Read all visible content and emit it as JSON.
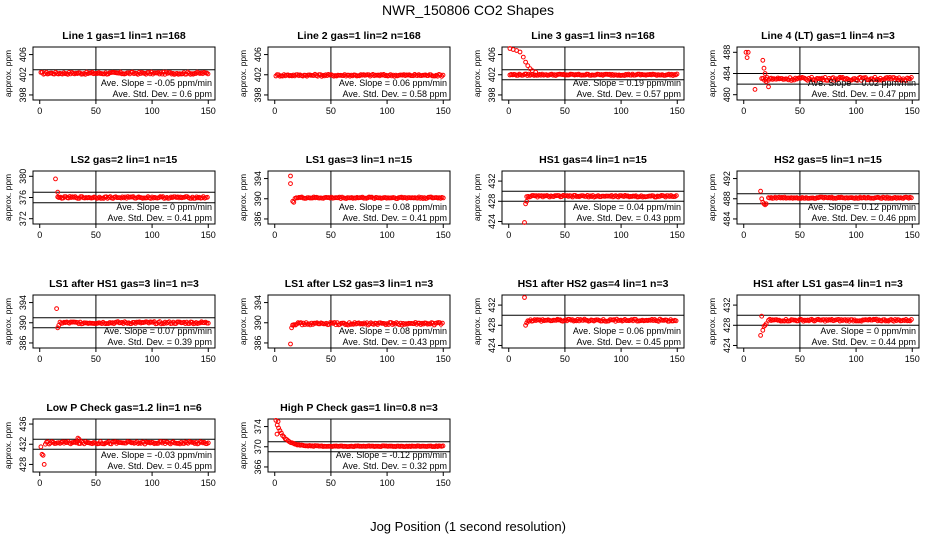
{
  "title": "NWR_150806  CO2 Shapes",
  "xlabel": "Jog Position (1 second resolution)",
  "colors": {
    "points": "#ff0000",
    "axes": "#000000"
  },
  "chart_data": [
    {
      "type": "scatter",
      "title": "Line 1 gas=1 lin=1 n=168",
      "ylabel": "approx. ppm",
      "xticks": [
        0,
        50,
        100,
        150
      ],
      "yticks": [
        398,
        402,
        406
      ],
      "ylim": [
        397,
        407.5
      ],
      "hline_upper": 403,
      "hline_lower": null,
      "slope_text": "Ave. Slope = -0.05 ppm/min",
      "sd_text": "Ave. Std. Dev. = 0.6  ppm",
      "base": 402.3,
      "start_x": 1,
      "spike": [],
      "noise": 0.22
    },
    {
      "type": "scatter",
      "title": "Line 2 gas=1 lin=2 n=168",
      "ylabel": "approx. ppm",
      "xticks": [
        0,
        50,
        100,
        150
      ],
      "yticks": [
        398,
        402,
        406
      ],
      "ylim": [
        397,
        407.5
      ],
      "hline_upper": null,
      "hline_lower": null,
      "slope_text": "Ave. Slope = 0.06 ppm/min",
      "sd_text": "Ave. Std. Dev. = 0.58  ppm",
      "base": 401.9,
      "start_x": 1,
      "spike": [],
      "noise": 0.2
    },
    {
      "type": "scatter",
      "title": "Line 3 gas=1 lin=3 n=168",
      "ylabel": "approx. ppm",
      "xticks": [
        0,
        50,
        100,
        150
      ],
      "yticks": [
        398,
        402,
        406
      ],
      "ylim": [
        397,
        407.5
      ],
      "hline_upper": 403,
      "hline_lower": 401,
      "slope_text": "Ave. Slope = 0.19 ppm/min",
      "sd_text": "Ave. Std. Dev. = 0.57  ppm",
      "base": 402.0,
      "start_x": 1,
      "spike": [
        [
          1,
          407.2
        ],
        [
          4,
          407
        ],
        [
          7,
          406.8
        ],
        [
          10,
          406.5
        ],
        [
          13,
          405.5
        ],
        [
          15,
          404.5
        ],
        [
          17,
          403.8
        ],
        [
          19,
          403.2
        ],
        [
          21,
          402.8
        ],
        [
          24,
          402.5
        ]
      ],
      "noise": 0.15
    },
    {
      "type": "scatter",
      "title": "Line 4 (LT) gas=1 lin=4 n=3",
      "ylabel": "approx. ppm",
      "xticks": [
        0,
        50,
        100,
        150
      ],
      "yticks": [
        480,
        484,
        488
      ],
      "ylim": [
        479,
        489
      ],
      "hline_upper": 484,
      "hline_lower": 482,
      "slope_text": "Ave. Slope = 0.02 ppm/min",
      "sd_text": "Ave. Std. Dev. = 0.47  ppm",
      "base": 483.0,
      "start_x": 16,
      "spike": [
        [
          2,
          488
        ],
        [
          4,
          488
        ],
        [
          3,
          487
        ],
        [
          17,
          486.5
        ],
        [
          18,
          485
        ],
        [
          19,
          484
        ],
        [
          10,
          481
        ],
        [
          20,
          482.5
        ],
        [
          22,
          481.5
        ]
      ],
      "noise": 0.3
    },
    {
      "type": "scatter",
      "title": "LS2 gas=2 lin=1 n=15",
      "ylabel": "approx. ppm",
      "xticks": [
        0,
        50,
        100,
        150
      ],
      "yticks": [
        372,
        376,
        380
      ],
      "ylim": [
        371,
        381
      ],
      "hline_upper": 377,
      "hline_lower": 375,
      "slope_text": "Ave. Slope = 0 ppm/min",
      "sd_text": "Ave. Std. Dev. = 0.41  ppm",
      "base": 376.0,
      "start_x": 16,
      "spike": [
        [
          14,
          379.5
        ],
        [
          16,
          377
        ],
        [
          17,
          376
        ]
      ],
      "noise": 0.18
    },
    {
      "type": "scatter",
      "title": "LS1 gas=3 lin=1 n=15",
      "ylabel": "approx. ppm",
      "xticks": [
        0,
        50,
        100,
        150
      ],
      "yticks": [
        386,
        390,
        394
      ],
      "ylim": [
        385,
        395.5
      ],
      "hline_upper": null,
      "hline_lower": null,
      "slope_text": "Ave. Slope = 0.08 ppm/min",
      "sd_text": "Ave. Std. Dev. = 0.41  ppm",
      "base": 390.2,
      "start_x": 18,
      "spike": [
        [
          14,
          394.5
        ],
        [
          14,
          393
        ],
        [
          16,
          389.5
        ],
        [
          17,
          389.3
        ]
      ],
      "noise": 0.16
    },
    {
      "type": "scatter",
      "title": "HS1 gas=4 lin=1 n=15",
      "ylabel": "approx. ppm",
      "xticks": [
        0,
        50,
        100,
        150
      ],
      "yticks": [
        424,
        428,
        432
      ],
      "ylim": [
        423.5,
        434
      ],
      "hline_upper": 430,
      "hline_lower": 428,
      "slope_text": "Ave. Slope = 0.04 ppm/min",
      "sd_text": "Ave. Std. Dev. = 0.43  ppm",
      "base": 429.0,
      "start_x": 16,
      "spike": [
        [
          14,
          423.8
        ],
        [
          15,
          427.5
        ],
        [
          16,
          428
        ]
      ],
      "noise": 0.17
    },
    {
      "type": "scatter",
      "title": "HS2 gas=5 lin=1 n=15",
      "ylabel": "approx. ppm",
      "xticks": [
        0,
        50,
        100,
        150
      ],
      "yticks": [
        484,
        488,
        492
      ],
      "ylim": [
        483,
        493.5
      ],
      "hline_upper": 489,
      "hline_lower": 487,
      "slope_text": "Ave. Slope = 0.12 ppm/min",
      "sd_text": "Ave. Std. Dev. = 0.46  ppm",
      "base": 488.2,
      "start_x": 22,
      "spike": [
        [
          15,
          489.5
        ],
        [
          16,
          488
        ],
        [
          17,
          487.3
        ],
        [
          18,
          487
        ],
        [
          19,
          486.8
        ],
        [
          20,
          487
        ]
      ],
      "noise": 0.14
    },
    {
      "type": "scatter",
      "title": "LS1 after HS1 gas=3 lin=1 n=3",
      "ylabel": "approx. ppm",
      "xticks": [
        0,
        50,
        100,
        150
      ],
      "yticks": [
        386,
        390,
        394
      ],
      "ylim": [
        385,
        395.5
      ],
      "hline_upper": 391,
      "hline_lower": 389,
      "slope_text": "Ave. Slope = 0.07 ppm/min",
      "sd_text": "Ave. Std. Dev. = 0.39  ppm",
      "base": 390.0,
      "start_x": 18,
      "spike": [
        [
          15,
          392.8
        ],
        [
          16,
          389
        ],
        [
          17,
          389.5
        ]
      ],
      "noise": 0.22
    },
    {
      "type": "scatter",
      "title": "LS1 after LS2 gas=3 lin=1 n=3",
      "ylabel": "approx. ppm",
      "xticks": [
        0,
        50,
        100,
        150
      ],
      "yticks": [
        386,
        390,
        394
      ],
      "ylim": [
        385,
        395.5
      ],
      "hline_upper": null,
      "hline_lower": null,
      "slope_text": "Ave. Slope = 0.08 ppm/min",
      "sd_text": "Ave. Std. Dev. = 0.43  ppm",
      "base": 389.8,
      "start_x": 16,
      "spike": [
        [
          14,
          385.8
        ],
        [
          15,
          389
        ],
        [
          16,
          389.5
        ]
      ],
      "noise": 0.25
    },
    {
      "type": "scatter",
      "title": "HS1 after HS2 gas=4 lin=1 n=3",
      "ylabel": "approx. ppm",
      "xticks": [
        0,
        50,
        100,
        150
      ],
      "yticks": [
        424,
        428,
        432
      ],
      "ylim": [
        423.5,
        434
      ],
      "hline_upper": 430,
      "hline_lower": null,
      "slope_text": "Ave. Slope = 0.06 ppm/min",
      "sd_text": "Ave. Std. Dev. = 0.45  ppm",
      "base": 429.0,
      "start_x": 17,
      "spike": [
        [
          14,
          433.5
        ],
        [
          15,
          428
        ],
        [
          16,
          428.5
        ]
      ],
      "noise": 0.22
    },
    {
      "type": "scatter",
      "title": "HS1 after LS1 gas=4 lin=1 n=3",
      "ylabel": "approx. ppm",
      "xticks": [
        0,
        50,
        100,
        150
      ],
      "yticks": [
        424,
        428,
        432
      ],
      "ylim": [
        423.5,
        434
      ],
      "hline_upper": 430,
      "hline_lower": 428,
      "slope_text": "Ave. Slope = 0 ppm/min",
      "sd_text": "Ave. Std. Dev. = 0.44  ppm",
      "base": 429.0,
      "start_x": 22,
      "spike": [
        [
          15,
          426
        ],
        [
          16,
          429.8
        ],
        [
          17,
          427
        ],
        [
          18,
          427.8
        ],
        [
          19,
          428
        ],
        [
          20,
          428.3
        ]
      ],
      "noise": 0.2
    },
    {
      "type": "scatter",
      "title": "Low P Check gas=1.2 lin=1 n=6",
      "ylabel": "approx. ppm",
      "xticks": [
        0,
        50,
        100,
        150
      ],
      "yticks": [
        428,
        432,
        436
      ],
      "ylim": [
        426.5,
        437
      ],
      "hline_upper": 433,
      "hline_lower": 431,
      "slope_text": "Ave. Slope = -0.03 ppm/min",
      "sd_text": "Ave. Std. Dev. = 0.45  ppm",
      "base": 432.3,
      "start_x": 6,
      "spike": [
        [
          1,
          431.5
        ],
        [
          2,
          430
        ],
        [
          3,
          429.8
        ],
        [
          4,
          428
        ],
        [
          5,
          432
        ],
        [
          34,
          433.2
        ],
        [
          35,
          433
        ]
      ],
      "noise": 0.25
    },
    {
      "type": "scatter",
      "title": "High P Check gas=1 lin=0.8 n=3",
      "ylabel": "approx. ppm",
      "xticks": [
        0,
        50,
        100,
        150
      ],
      "yticks": [
        366,
        370,
        374
      ],
      "ylim": [
        365,
        375.5
      ],
      "hline_upper": 371,
      "hline_lower": 369,
      "slope_text": "Ave. Slope = -0.12 ppm/min",
      "sd_text": "Ave. Std. Dev. = 0.32  ppm",
      "base": 370.0,
      "start_x": 1,
      "spike": [
        [
          2,
          372.5
        ],
        [
          3,
          375
        ]
      ],
      "decay": {
        "from": 374.5,
        "to": 370.1,
        "tau": 7
      },
      "noise": 0.15
    }
  ]
}
